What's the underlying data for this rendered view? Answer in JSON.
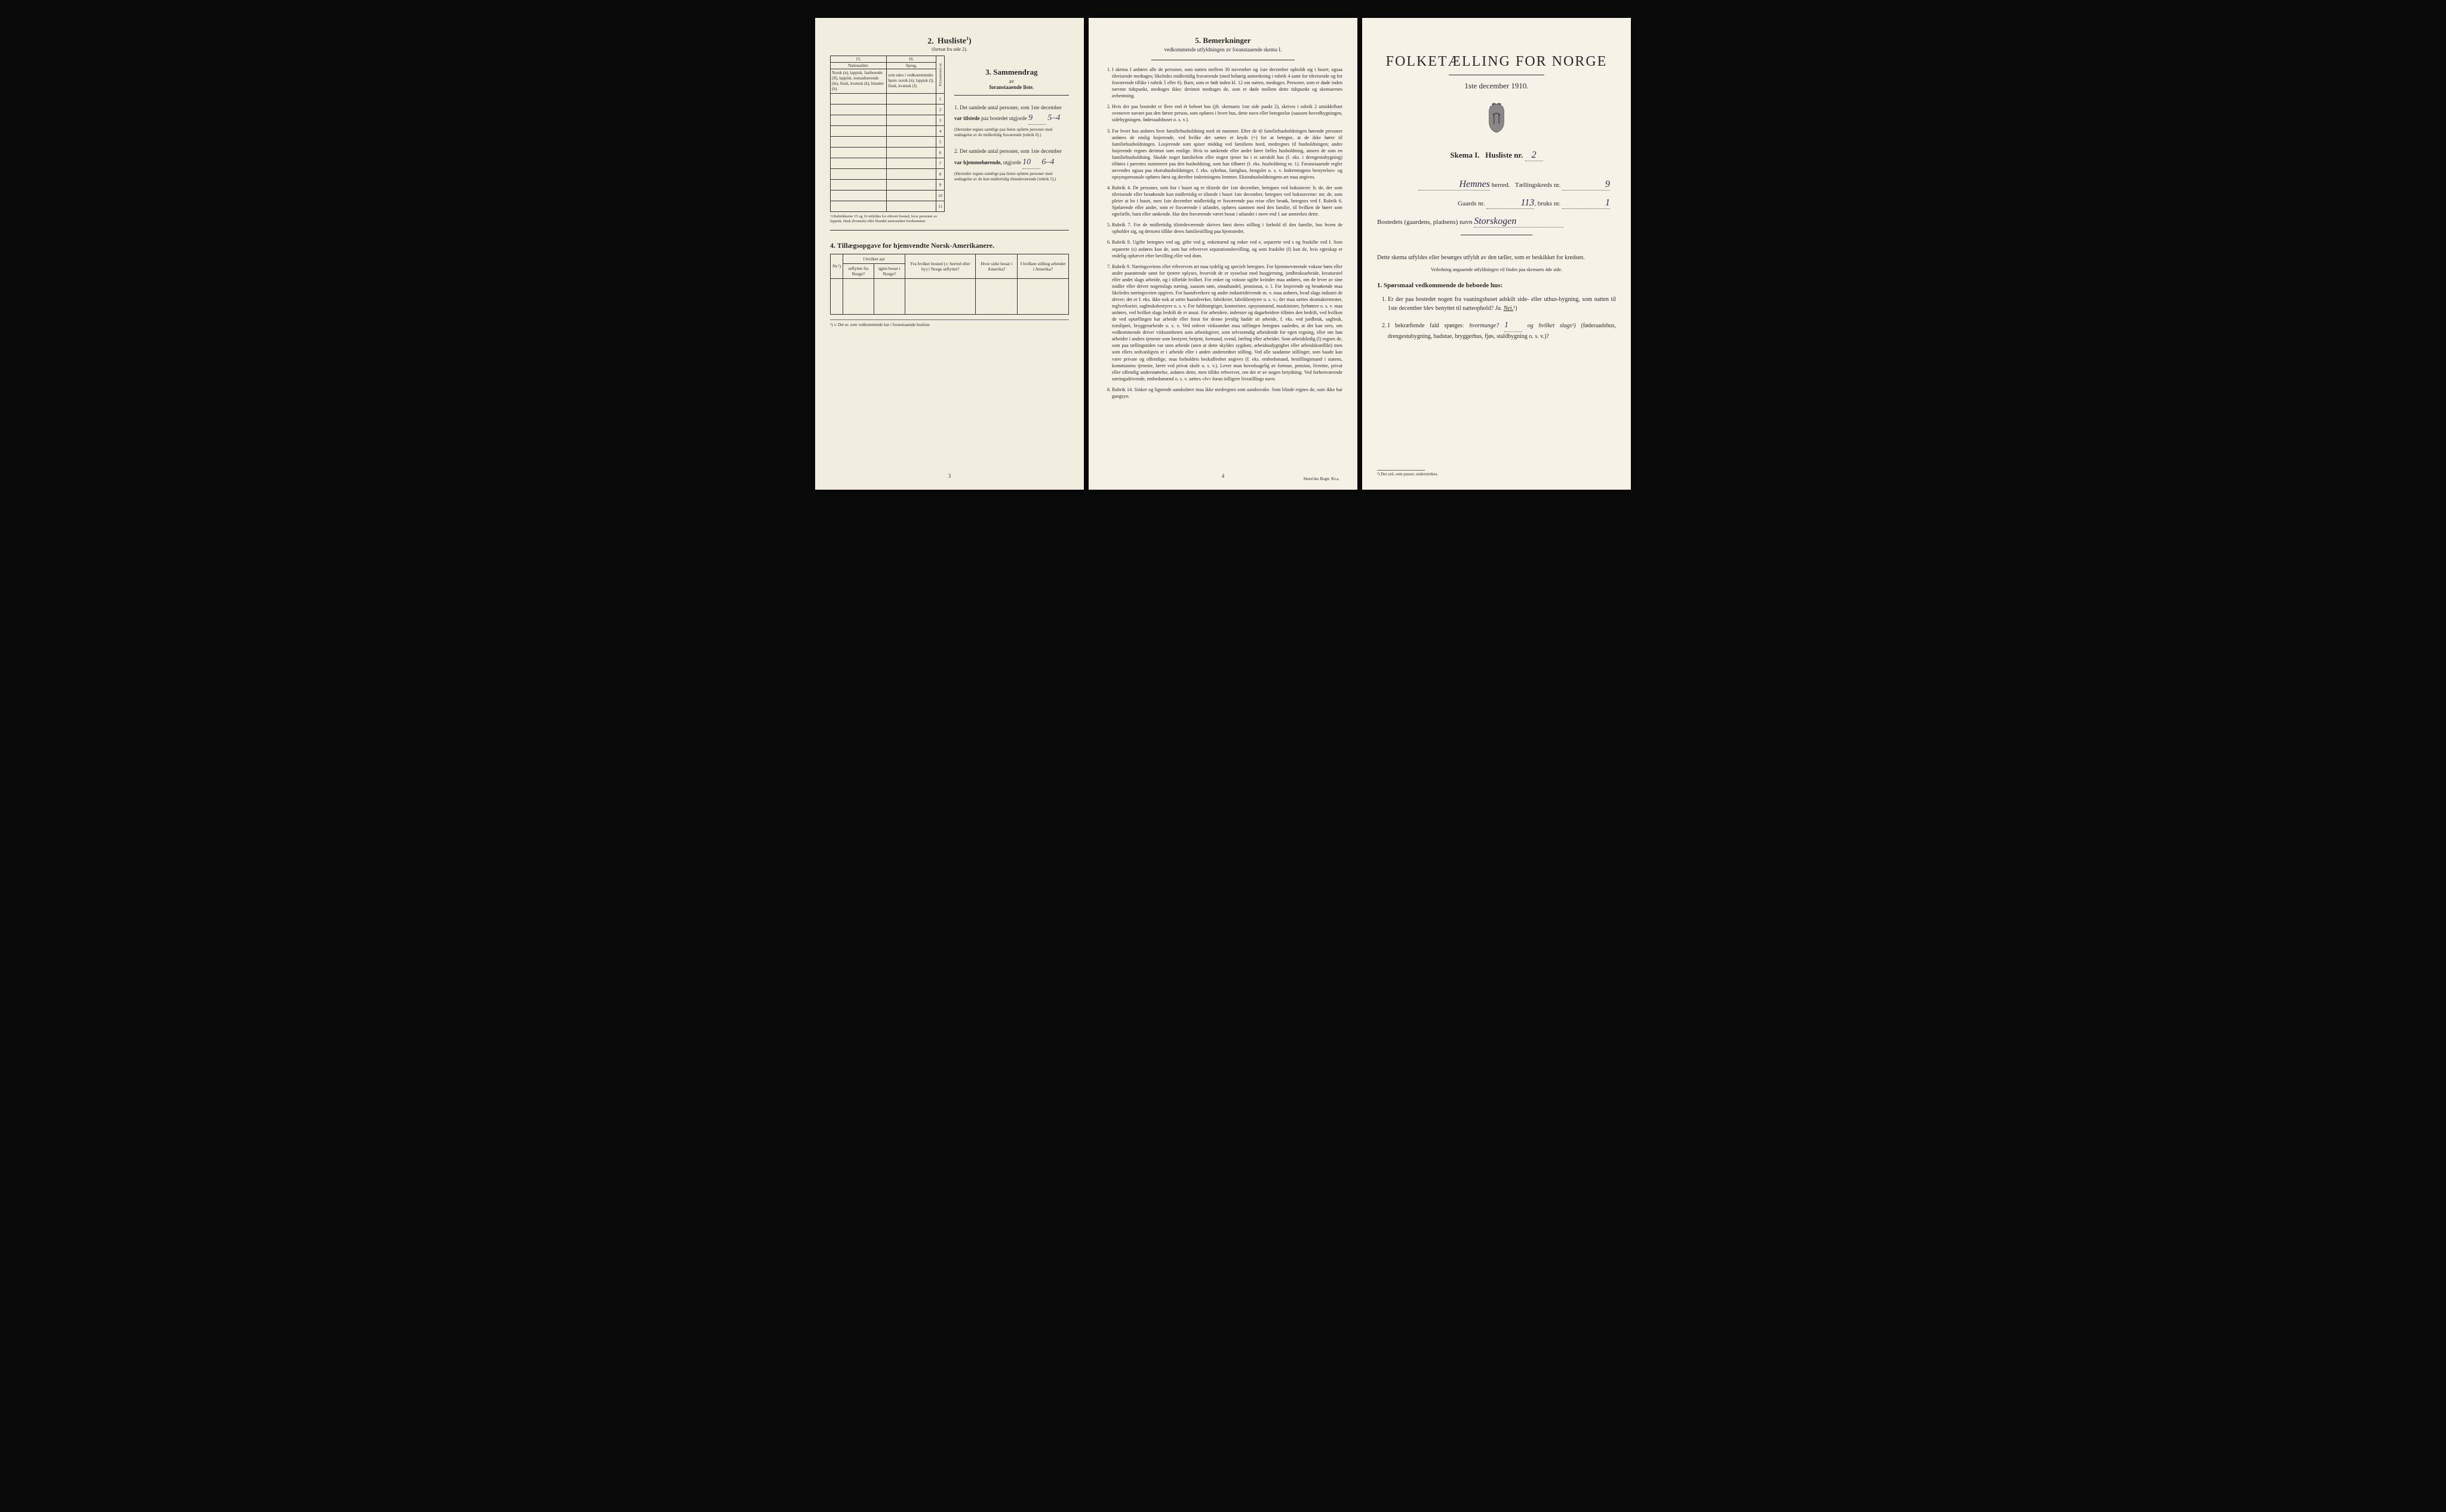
{
  "page_left": {
    "section2": {
      "number": "2.",
      "title": "Husliste",
      "sup": "1",
      "paren": ")",
      "continued": "(fortsat fra side 2).",
      "col15": "15.",
      "col16": "16.",
      "nationalitet_hdr": "Nationalitet.",
      "sprog_hdr": "Sprog,",
      "nat_body": "Norsk (n), lappisk, fastboende (lf), lappisk, nomadiserende (ln), finsk, kvænsk (k), blandet (b).",
      "sprog_body": "som tales i vedkommendes hjem: norsk (n), lappisk (l), finsk, kvænsk (f).",
      "pers_nr": "Personernes nr.",
      "rows": [
        "1",
        "2",
        "3",
        "4",
        "5",
        "6",
        "7",
        "8",
        "9",
        "10",
        "11"
      ],
      "footnote": "¹) Rubrikkerne 15 og 16 utfyldes for ethvert bosted, hvor personer av lappisk, finsk (kvænsk) eller blandet nationalitet forekommer."
    },
    "section3": {
      "number": "3.",
      "title": "Sammendrag",
      "sub1": "av",
      "sub2": "foranstaaende liste.",
      "item1_lead": "1. Det samlede antal personer, som 1ste december",
      "item1_bold": "var tilstede",
      "item1_rest": "paa bostedet utgjorde",
      "item1_val": "9",
      "item1_val2": "5–4",
      "item1_note": "(Herunder regnes samtlige paa listen opførte personer med undtagelse av de midlertidig fraværende [rubrik 6].)",
      "item2_lead": "2. Det samlede antal personer, som 1ste december",
      "item2_bold": "var hjemmehørende,",
      "item2_rest": "utgjorde",
      "item2_val": "10",
      "item2_val2": "6–4",
      "item2_note": "(Herunder regnes samtlige paa listen opførte personer med undtagelse av de kun midlertidig tilstedeværende [rubrik 5].)"
    },
    "section4": {
      "number": "4.",
      "title": "Tillægsopgave for hjemvendte Norsk-Amerikanere.",
      "headers": {
        "nr": "Nr.²)",
        "aar": "I hvilket aar",
        "utflyttet": "utflyttet fra Norge?",
        "igjen": "igjen bosat i Norge?",
        "fra_bosted": "Fra hvilket bosted (ɔ: herred eller by) i Norge utflyttet?",
        "hvor_sidst": "Hvor sidst bosat i Amerika?",
        "stilling": "I hvilken stilling arbeidet i Amerika?"
      },
      "footnote": "²) ɔ: Det nr. som vedkommende har i foranstaaende husliste."
    },
    "page_num": "3"
  },
  "page_mid": {
    "number": "5.",
    "title": "Bemerkninger",
    "subtitle": "vedkommende utfyldningen av foranstaaende skema I.",
    "items": [
      "I skema I anføres alle de personer, som natten mellem 30 november og 1ste december opholdt sig i huset; ogsaa tilreisende medtages; likeledes midlertidig fraværende (med behørig anmerkning i rubrik 4 samt for tilreisende og for fraværende tillike i rubrik 5 eller 6). Barn, som er født inden kl. 12 om natten, medtages. Personer, som er døde inden nævnte tidspunkt, medtages ikke; derimot medtages de, som er døde mellem dette tidspunkt og skemaernes avhentning.",
      "Hvis der paa bostedet er flere end ét beboet hus (jfr. skemaets 1ste side punkt 2), skrives i rubrik 2 umiddelbart ovenover navnet paa den første person, som opføres i hvert hus, dette navn eller betegnelse (saasom hovedbygningen, sidebygningen, føderaadshuset o. s. v.).",
      "For hvert hus anføres hver familiehusholdning med sit nummer. Efter de til familiehusholdningen hørende personer anføres de enslig losjerende, ved hvilke der sættes et kryds (×) for at betegne, at de ikke hører til familiehusholdningen. Losjerende som spiser middag ved familiens bord, medregnes til husholdningen; andre losjerende regnes derimot som enslige. Hvis to søskende eller andre fører fælles husholdning, ansees de som en familiehusholdning. Skulde noget familielem eller nogen tjener bo i et særskilt hus (f. eks. i drengestubygning) tilføies i parentes nummeret paa den husholdning, som han tilhører (f. eks. husholdning nr. 1).\n   Foranstaaende regler anvendes ogsaa paa ekstrahusholdninger, f. eks. sykehus, fattighus, fængsler o. s. v. Indretningens bestyrelses- og opsynspersonale opføres først og derefter indretningens lemmer. Ekstrahusholdningens art maa angives.",
      "Rubrik 4. De personer, som bor i huset og er tilstede der 1ste december, betegnes ved bokstaven: b; de, der som tilreisende eller besøkende kun midlertidig er tilstede i huset 1ste december, betegnes ved bokstaverne: mt; de, som pleier at bo i huset, men 1ste december midlertidig er fraværende paa reise eller besøk, betegnes ved f.\n   Rubrik 6. Sjøfarende eller andre, som er fraværende i utlandet, opføres sammen med den familie, til hvilken de hører som egtefælle, barn eller søskende.\n   Har den fraværende været bosat i utlandet i mere end 1 aar anmerkes dette.",
      "Rubrik 7. For de midlertidig tilstedeværende skrives først deres stilling i forhold til den familie, hos hvem de opholder sig, og dernæst tillike deres familiestilling paa hjemstedet.",
      "Rubrik 8. Ugifte betegnes ved ug, gifte ved g, enkemænd og enker ved e, separerte ved s og fraskilte ved f. Som separerte (s) anføres kun de, som har erhvervet separationsbevilling, og som fraskilte (f) kun de, hvis egteskap er endelig ophævet efter bevilling eller ved dom.",
      "Rubrik 9. Næringsveiens eller erhvervets art maa tydelig og specielt betegnes.\n   For hjemmeværende voksne børn eller andre paarørende samt for tjenere oplyses, hvorvidt de er sysselsat med husgjerning, jordbruksarbeide, kreaturstel eller andet slags arbeide, og i tilfælde hvilket. For enker og voksne ugifte kvinder maa anføres, om de lever av sine midler eller driver nogenslags næring, saasom søm, smaahandel, pensionat, o. l.\n   For losjerende og besøkende maa likeledes næringsveien opgives.\n   For haandverkere og andre industridrivende m. v. maa anføres, hvad slags industri de driver; det er f. eks. ikke nok at sætte haandverker, fabrikeier, fabrikbestyrer o. s. v.; der maa sættes skomakermester, teglverkseier, sagbruksbestyrer o. s. v.\n   For fuldmægtiger, kontorister, opsynsmænd, maskinister, fyrbøtere o. s. v. maa anføres, ved hvilket slags bedrift de er ansat.\n   For arbeidere, inderster og dagarbeidere tilføies den bedrift, ved hvilken de ved optællingen har arbeide eller forut for denne jevnlig hadde sit arbeide, f. eks. ved jordbruk, sagbruk, træsliperi, bryggerarbeide o. s. v.\n   Ved enhver virksomhet maa stillingen betegnes saaledes, at det kan sees, om vedkommende driver virksomheten som arbeidsgiver, som selvstændig arbeidende for egen regning, eller om han arbeider i andres tjeneste som bestyrer, betjent, formand, svend, lærling eller arbeider.\n   Som arbeidsledig (l) regnes de, som paa tællingstiden var uten arbeide (uten at dette skyldes sygdom, arbeidsudygtighet eller arbeidskonflikt) men som ellers sedvanligvis er i arbeide eller i anden underordnet stilling.\n   Ved alle saadanne stillinger, som baade kan være private og offentlige, maa forholdets beskaffenhet angives (f. eks. embedsmand, bestillingsmand i statens, kommunens tjeneste, lærer ved privat skole o. s. v.).\n   Lever man hovedsagelig av formue, pension, livrente, privat eller offentlig understøttelse, anføres dette, men tillike erhvervet, om det er av nogen betydning.\n   Ved forhenværende næringsdrivende, embedsmænd o. s. v. sættes «fv» foran tidligere livsstillings navn.",
      "Rubrik 14. Sinker og lignende aandssløve maa ikke medregnes som aandssvake.\n   Som blinde regnes de, som ikke har gangsyn."
    ],
    "page_num": "4",
    "printer": "Steen'ske Bogtr. Kr.a."
  },
  "page_right": {
    "main_title": "FOLKETÆLLING FOR NORGE",
    "date": "1ste december 1910.",
    "skema": "Skema I.",
    "husliste_lbl": "Husliste nr.",
    "husliste_nr": "2",
    "herred_val": "Hemnes",
    "herred_lbl": "herred.",
    "kreds_lbl": "Tællingskreds nr.",
    "kreds_nr": "9",
    "gaards_lbl": "Gaards nr.",
    "gaards_nr": "113",
    "bruks_lbl": "bruks nr.",
    "bruks_nr": "1",
    "bosted_lbl": "Bostedets (gaardens, pladsens) navn",
    "bosted_val": "Storskogen",
    "instr": "Dette skema utfyldes eller besørges utfyldt av den tæller, som er beskikket for kredsen.",
    "instr_sub": "Veiledning angaaende utfyldningen vil findes paa skemaets 4de side.",
    "q_header": "1. Spørsmaal vedkommende de beboede hus:",
    "q1": "Er der paa bostedet nogen fra vaaningshuset adskilt side- eller uthus-bygning, som natten til 1ste december blev benyttet til natteophold?",
    "ja": "Ja.",
    "nei": "Nei.",
    "nei_sup": "¹)",
    "q2_lead": "I bekræftende fald spørges:",
    "q2_hvor": "hvormange?",
    "q2_hvor_val": "1",
    "q2_og": "og hvilket slags¹)",
    "q2_paren": "(føderaadshus, drengestubygning, badstue, bryggerhus, fjøs, staldbygning o. s. v.)?",
    "footnote": "¹) Det ord, som passer, understrekes."
  }
}
